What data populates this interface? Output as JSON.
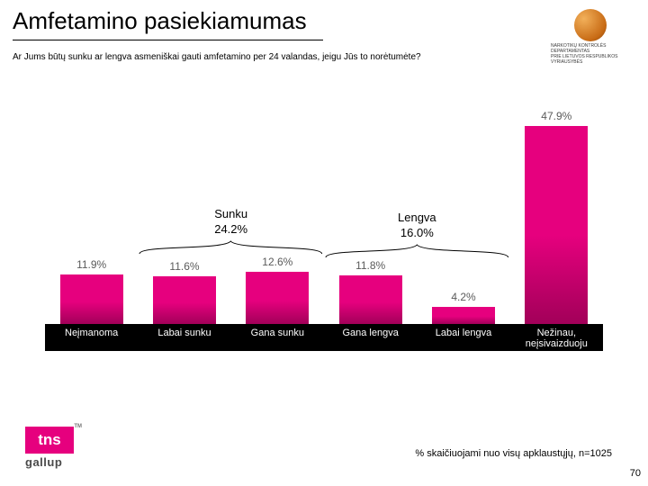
{
  "title": "Amfetamino pasiekiamumas",
  "subtitle": "Ar Jums būtų sunku ar lengva asmeniškai gauti amfetamino per 24 valandas, jeigu Jūs to norėtumėte?",
  "chart": {
    "type": "bar",
    "ymax": 50,
    "value_label_color": "#5a5a5a",
    "value_label_fontsize": 12,
    "xlabel_bg": "#000000",
    "xlabel_color": "#ffffff",
    "xlabel_fontsize": 11,
    "bars": [
      {
        "label": "Neįmanoma",
        "value": 11.9,
        "display": "11.9%",
        "fill_top": "#e6007e",
        "fill_bottom": "#a20059"
      },
      {
        "label": "Labai sunku",
        "value": 11.6,
        "display": "11.6%",
        "fill_top": "#e6007e",
        "fill_bottom": "#a20059"
      },
      {
        "label": "Gana sunku",
        "value": 12.6,
        "display": "12.6%",
        "fill_top": "#e6007e",
        "fill_bottom": "#a20059"
      },
      {
        "label": "Gana lengva",
        "value": 11.8,
        "display": "11.8%",
        "fill_top": "#e6007e",
        "fill_bottom": "#a20059"
      },
      {
        "label": "Labai lengva",
        "value": 4.2,
        "display": "4.2%",
        "fill_top": "#e6007e",
        "fill_bottom": "#a20059"
      },
      {
        "label": "Nežinau, neįsivaizduoju",
        "value": 47.9,
        "display": "47.9%",
        "fill_top": "#e6007e",
        "fill_bottom": "#a20059"
      }
    ],
    "groups": [
      {
        "name": "Sunku",
        "pct": "24.2%",
        "from": 1,
        "to": 2
      },
      {
        "name": "Lengva",
        "pct": "16.0%",
        "from": 3,
        "to": 4
      }
    ]
  },
  "footnote": "% skaičiuojami nuo visų apklaustųjų, n=1025",
  "page_number": "70",
  "tns": {
    "box": "tns",
    "sub": "gallup"
  },
  "nkd": {
    "line1": "NARKOTIKŲ KONTROLĖS DEPARTAMENTAS",
    "line2": "PRIE LIETUVOS RESPUBLIKOS VYRIAUSYBĖS"
  }
}
